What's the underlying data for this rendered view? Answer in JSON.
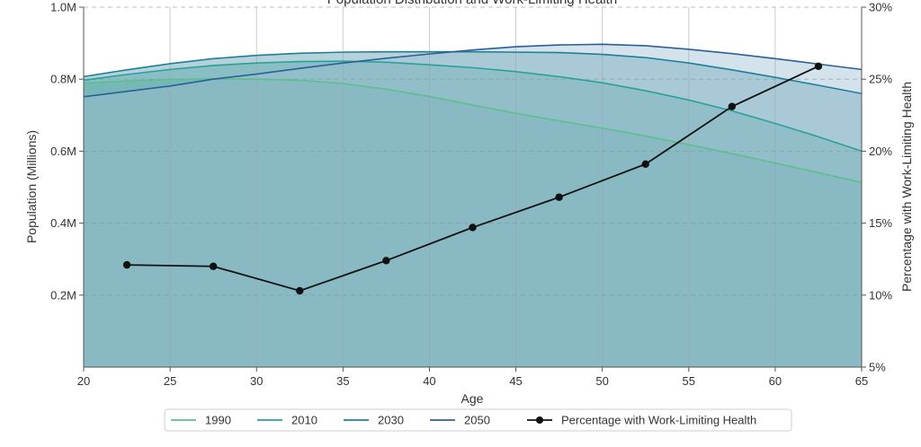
{
  "chart_data": {
    "type": "area",
    "title": "Population Distribution and Work-Limiting Health",
    "xlabel": "Age",
    "ylabel": "Population (Millions)",
    "y2label": "Percentage with Work-Limiting Health",
    "xlim": [
      20,
      65
    ],
    "ylim": [
      0,
      1.0
    ],
    "y2lim": [
      5,
      30
    ],
    "xticks": [
      20,
      25,
      30,
      35,
      40,
      45,
      50,
      55,
      60,
      65
    ],
    "yticks": [
      {
        "value": 0.2,
        "label": "0.2M"
      },
      {
        "value": 0.4,
        "label": "0.4M"
      },
      {
        "value": 0.6,
        "label": "0.6M"
      },
      {
        "value": 0.8,
        "label": "0.8M"
      },
      {
        "value": 1.0,
        "label": "1.0M"
      }
    ],
    "y2ticks": [
      {
        "value": 5,
        "label": "5%"
      },
      {
        "value": 10,
        "label": "10%"
      },
      {
        "value": 15,
        "label": "15%"
      },
      {
        "value": 20,
        "label": "20%"
      },
      {
        "value": 25,
        "label": "25%"
      },
      {
        "value": 30,
        "label": "30%"
      }
    ],
    "grid": true,
    "legend_position": "bottom",
    "x": [
      20,
      22.5,
      25,
      27.5,
      30,
      32.5,
      35,
      37.5,
      40,
      42.5,
      45,
      47.5,
      50,
      52.5,
      55,
      57.5,
      60,
      62.5,
      65
    ],
    "series": [
      {
        "name": "1990",
        "color": "#5dbf8e",
        "fill": "#7fc9a8",
        "values": [
          0.789,
          0.795,
          0.799,
          0.801,
          0.8,
          0.797,
          0.788,
          0.772,
          0.752,
          0.728,
          0.705,
          0.684,
          0.664,
          0.642,
          0.618,
          0.593,
          0.567,
          0.54,
          0.513
        ]
      },
      {
        "name": "2010",
        "color": "#2aa198",
        "fill": "#4fb0a5",
        "values": [
          0.797,
          0.813,
          0.827,
          0.838,
          0.845,
          0.849,
          0.85,
          0.847,
          0.84,
          0.832,
          0.821,
          0.807,
          0.79,
          0.768,
          0.742,
          0.712,
          0.677,
          0.64,
          0.6
        ]
      },
      {
        "name": "2030",
        "color": "#1f7f99",
        "fill": "#5b9cb0",
        "values": [
          0.807,
          0.826,
          0.843,
          0.857,
          0.866,
          0.872,
          0.875,
          0.876,
          0.876,
          0.876,
          0.875,
          0.874,
          0.869,
          0.86,
          0.845,
          0.826,
          0.805,
          0.783,
          0.76
        ]
      },
      {
        "name": "2050",
        "color": "#2b5f9a",
        "fill": "#9dbfd3",
        "values": [
          0.751,
          0.766,
          0.781,
          0.8,
          0.814,
          0.83,
          0.845,
          0.858,
          0.87,
          0.881,
          0.89,
          0.895,
          0.897,
          0.893,
          0.883,
          0.871,
          0.857,
          0.842,
          0.827
        ]
      }
    ],
    "line_series": {
      "name": "Percentage with Work-Limiting Health",
      "axis": "right",
      "color": "#111111",
      "x": [
        22.5,
        27.5,
        32.5,
        37.5,
        42.5,
        47.5,
        52.5,
        57.5,
        62.5
      ],
      "values": [
        12.1,
        12.0,
        10.3,
        12.4,
        14.7,
        16.8,
        19.1,
        23.1,
        25.9
      ]
    }
  }
}
